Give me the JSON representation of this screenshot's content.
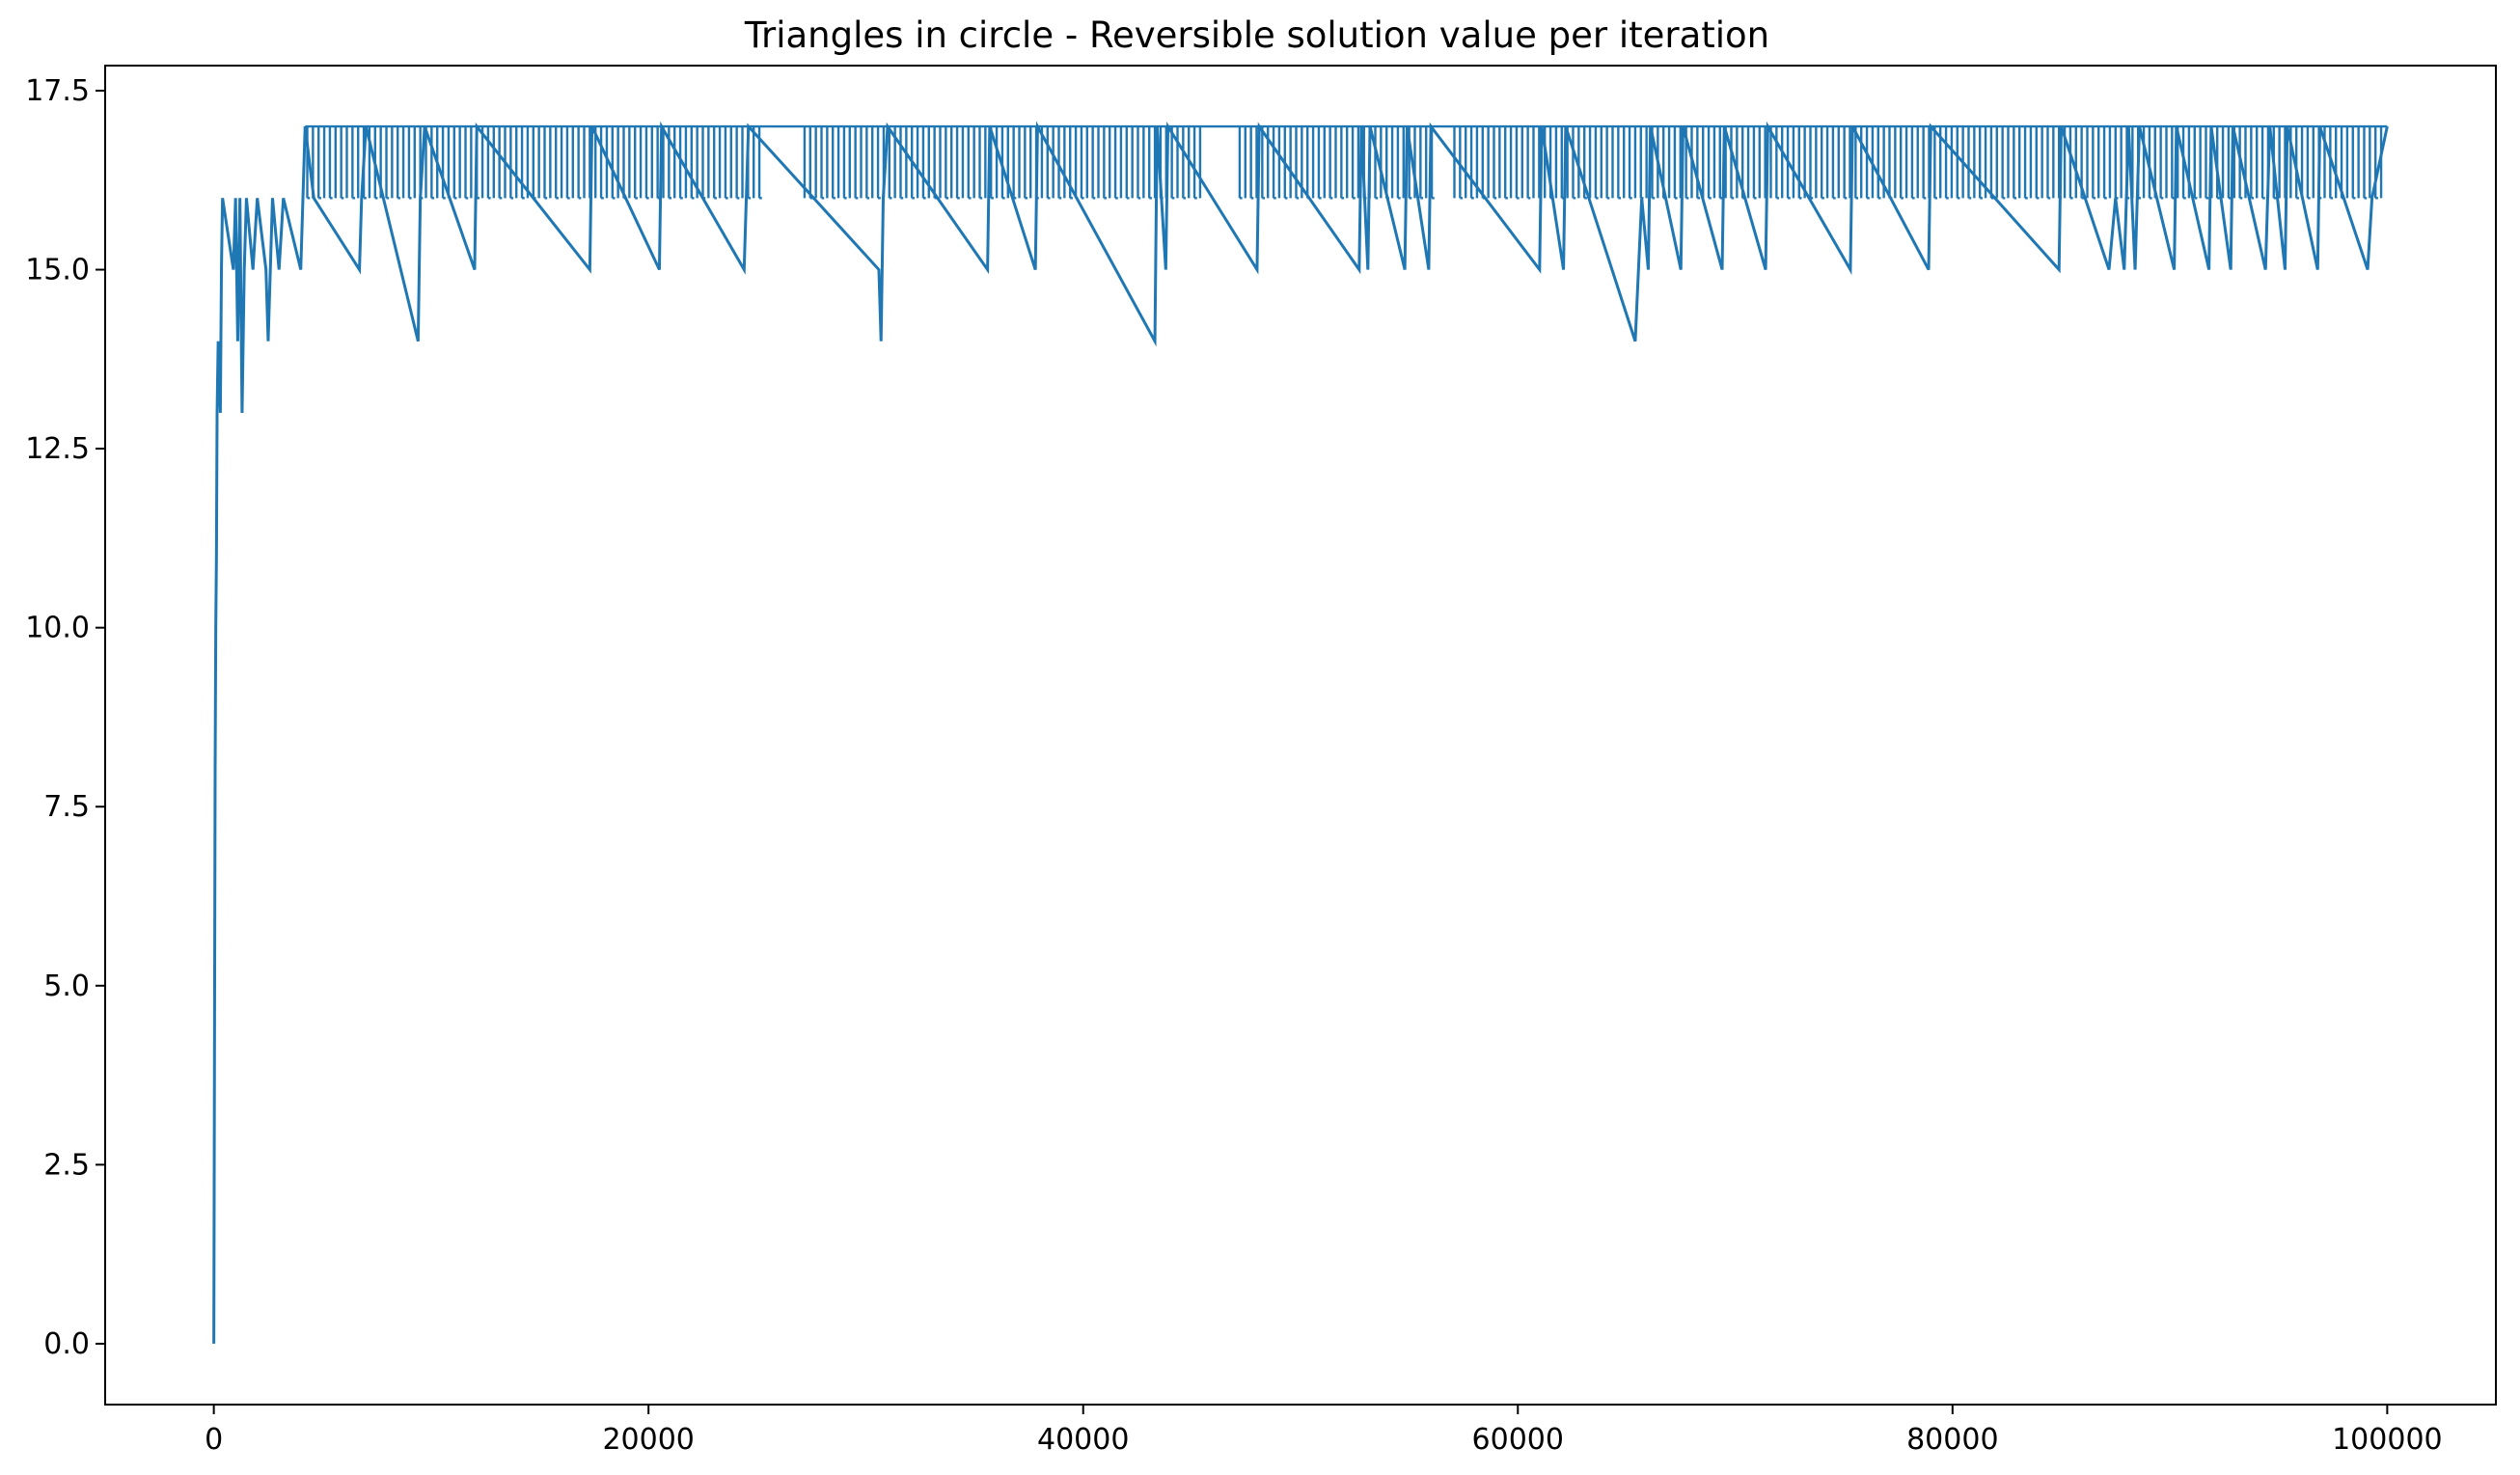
{
  "chart_data": {
    "type": "line",
    "title": "Triangles in circle - Reversible solution value per iteration",
    "xlabel": "",
    "ylabel": "",
    "xlim": [
      -5000,
      105000
    ],
    "ylim": [
      -0.85,
      17.85
    ],
    "x_ticks": [
      0,
      20000,
      40000,
      60000,
      80000,
      100000
    ],
    "y_ticks": [
      0.0,
      2.5,
      5.0,
      7.5,
      10.0,
      12.5,
      15.0,
      17.5
    ],
    "x_tick_labels": [
      "0",
      "20000",
      "40000",
      "60000",
      "80000",
      "100000"
    ],
    "y_tick_labels": [
      "0.0",
      "2.5",
      "5.0",
      "7.5",
      "10.0",
      "12.5",
      "15.0",
      "17.5"
    ],
    "grid": false,
    "legend": "none",
    "series": [
      {
        "color": "#1f77b4",
        "description_points": [
          [
            0,
            0
          ],
          [
            30,
            4
          ],
          [
            60,
            8
          ],
          [
            90,
            10
          ],
          [
            120,
            11
          ],
          [
            150,
            13
          ],
          [
            200,
            14
          ],
          [
            300,
            13
          ],
          [
            350,
            15
          ],
          [
            400,
            16
          ],
          [
            900,
            15
          ],
          [
            1000,
            16
          ],
          [
            1100,
            14
          ],
          [
            1200,
            16
          ],
          [
            1300,
            13
          ],
          [
            1400,
            15
          ],
          [
            1500,
            16
          ],
          [
            1800,
            15
          ],
          [
            2000,
            16
          ],
          [
            2400,
            15
          ],
          [
            2500,
            14
          ],
          [
            2700,
            16
          ],
          [
            3000,
            15
          ],
          [
            3200,
            16
          ],
          [
            4000,
            15
          ],
          [
            4100,
            16
          ],
          [
            4200,
            17
          ],
          [
            4600,
            16
          ],
          [
            6700,
            15
          ],
          [
            6800,
            16
          ],
          [
            7000,
            17
          ],
          [
            9400,
            14
          ],
          [
            9500,
            16
          ],
          [
            9700,
            17
          ],
          [
            12000,
            15
          ],
          [
            12100,
            17
          ],
          [
            17300,
            15
          ],
          [
            17400,
            17
          ],
          [
            20500,
            15
          ],
          [
            20600,
            17
          ],
          [
            24400,
            15
          ],
          [
            24600,
            17
          ],
          [
            30600,
            15
          ],
          [
            30700,
            14
          ],
          [
            30800,
            16
          ],
          [
            31000,
            17
          ],
          [
            35600,
            15
          ],
          [
            35700,
            17
          ],
          [
            37800,
            15
          ],
          [
            37900,
            17
          ],
          [
            43300,
            14
          ],
          [
            43400,
            17
          ],
          [
            43800,
            15
          ],
          [
            43900,
            17
          ],
          [
            48000,
            15
          ],
          [
            48100,
            17
          ],
          [
            52700,
            15
          ],
          [
            52800,
            17
          ],
          [
            53100,
            15
          ],
          [
            53200,
            17
          ],
          [
            54800,
            15
          ],
          [
            54900,
            17
          ],
          [
            55900,
            15
          ],
          [
            56000,
            17
          ],
          [
            61000,
            15
          ],
          [
            61100,
            17
          ],
          [
            62100,
            15
          ],
          [
            62200,
            17
          ],
          [
            65400,
            14
          ],
          [
            65700,
            16
          ],
          [
            66000,
            15
          ],
          [
            66100,
            17
          ],
          [
            67500,
            15
          ],
          [
            67600,
            17
          ],
          [
            69400,
            15
          ],
          [
            69500,
            17
          ],
          [
            71400,
            15
          ],
          [
            71500,
            17
          ],
          [
            75300,
            15
          ],
          [
            75400,
            17
          ],
          [
            78900,
            15
          ],
          [
            79000,
            17
          ],
          [
            84900,
            15
          ],
          [
            85000,
            17
          ],
          [
            87200,
            15
          ],
          [
            87500,
            16
          ],
          [
            87900,
            15
          ],
          [
            88100,
            17
          ],
          [
            88400,
            15
          ],
          [
            88600,
            17
          ],
          [
            90200,
            15
          ],
          [
            90300,
            17
          ],
          [
            91800,
            15
          ],
          [
            91900,
            17
          ],
          [
            92800,
            15
          ],
          [
            92900,
            17
          ],
          [
            94400,
            15
          ],
          [
            94600,
            17
          ],
          [
            95300,
            15
          ],
          [
            95400,
            17
          ],
          [
            96800,
            15
          ],
          [
            96900,
            17
          ],
          [
            99100,
            15
          ],
          [
            99300,
            16
          ],
          [
            100000,
            17
          ]
        ]
      }
    ]
  }
}
